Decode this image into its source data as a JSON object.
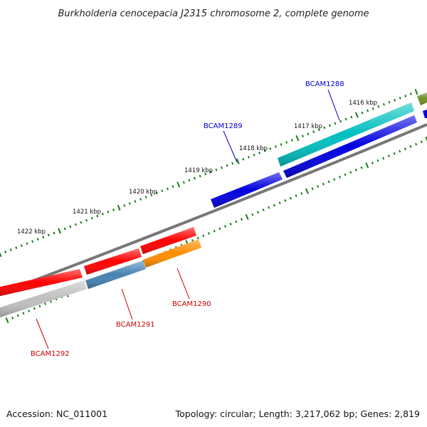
{
  "title": "Burkholderia cenocepacia J2315 chromosome 2, complete genome",
  "ticks": [
    {
      "label": "1416 kbp"
    },
    {
      "label": "1417 kbp"
    },
    {
      "label": "1418 kbp"
    },
    {
      "label": "1419 kbp"
    },
    {
      "label": "1420 kbp"
    },
    {
      "label": "1421 kbp"
    },
    {
      "label": "1422 kbp"
    }
  ],
  "genes": [
    {
      "name": "BCAM1288",
      "strand": "forward",
      "color": "#00bfbf"
    },
    {
      "name": "BCAM1289",
      "strand": "forward",
      "color": "#0000e0"
    },
    {
      "name": "BCAM1290",
      "strand": "reverse",
      "color": "#ff8c00"
    },
    {
      "name": "BCAM1291",
      "strand": "reverse",
      "color": "#4682b4"
    },
    {
      "name": "BCAM1292",
      "strand": "reverse",
      "color": "#bfbfbf"
    }
  ],
  "colors": {
    "forward_label": "#0000cc",
    "reverse_label": "#cc0000",
    "red_segment": "#ff0000",
    "olive_segment": "#6b8e23",
    "backbone": "#777777",
    "tick": "#1a7a1a"
  },
  "footer": {
    "accession": "Accession: NC_011001",
    "topology": "Topology: circular; Length: 3,217,062 bp; Genes: 2,819"
  }
}
